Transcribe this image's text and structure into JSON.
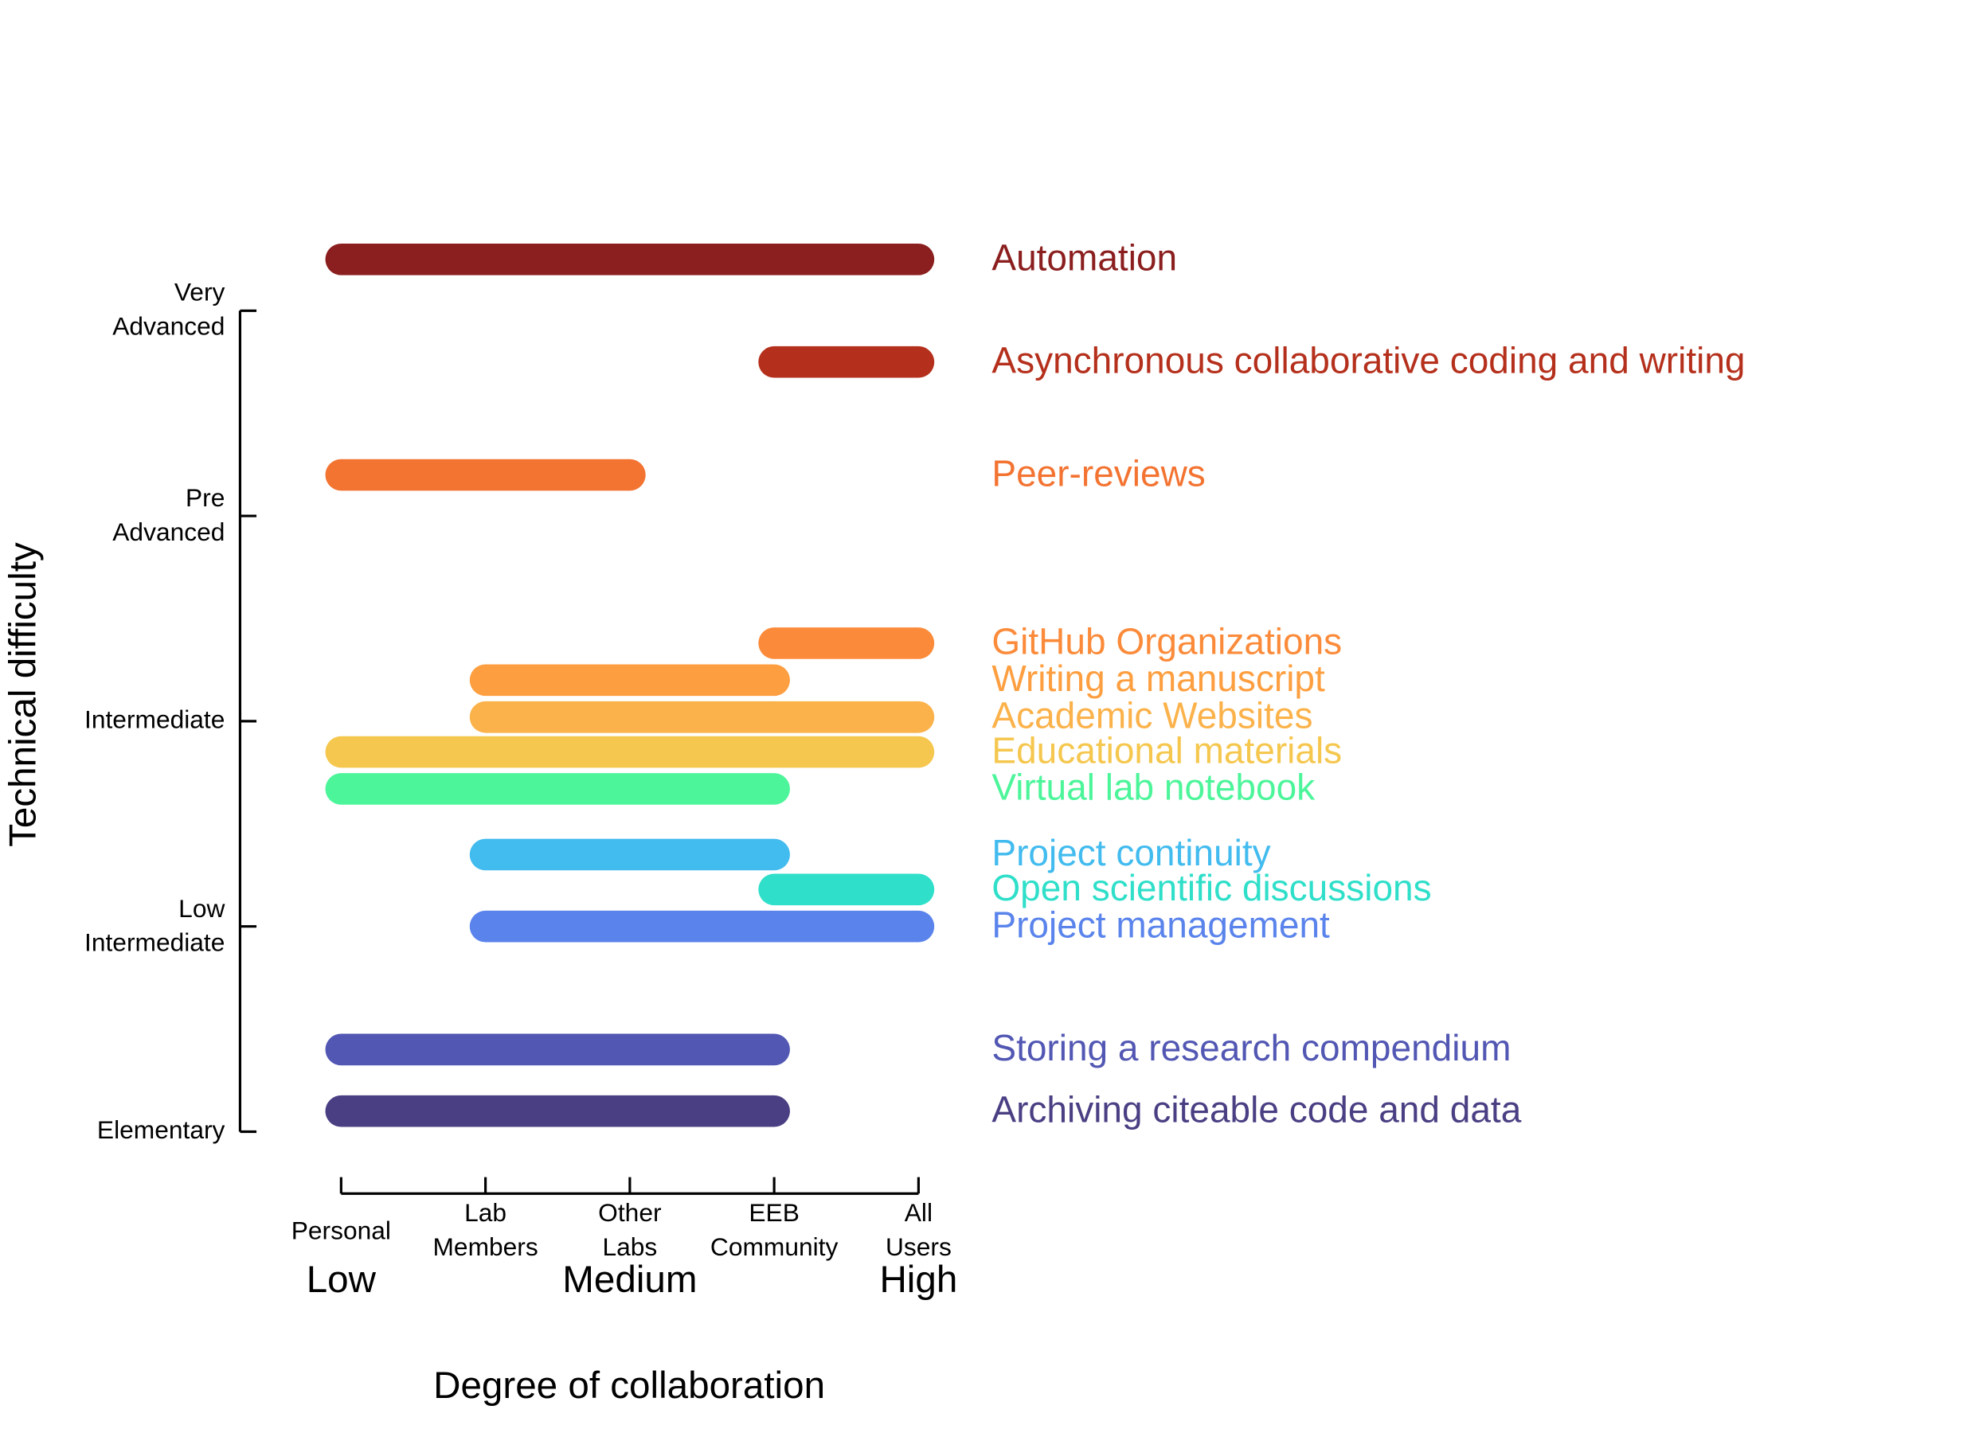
{
  "chart_data": {
    "type": "range_bar",
    "xlabel": "Degree of collaboration",
    "ylabel": "Technical difficulty",
    "xlim": [
      1,
      5
    ],
    "xticks": [
      {
        "value": 1,
        "label": "Personal"
      },
      {
        "value": 2,
        "label": "Lab Members"
      },
      {
        "value": 3,
        "label": "Other Labs"
      },
      {
        "value": 4,
        "label": "EEB Community"
      },
      {
        "value": 5,
        "label": "All Users"
      }
    ],
    "xlevels": [
      {
        "value": 1,
        "label": "Low"
      },
      {
        "value": 3,
        "label": "Medium"
      },
      {
        "value": 5,
        "label": "High"
      }
    ],
    "ylim": [
      1,
      5
    ],
    "yticks": [
      {
        "value": 1,
        "label": "Elementary"
      },
      {
        "value": 2,
        "label": "Low Intermediate"
      },
      {
        "value": 3,
        "label": "Intermediate"
      },
      {
        "value": 4,
        "label": "Pre Advanced"
      },
      {
        "value": 5,
        "label": "Very Advanced"
      }
    ],
    "grid": false,
    "series": [
      {
        "name": "Automation",
        "color": "#8b1e1e",
        "y": 5.25,
        "x": [
          1,
          5
        ]
      },
      {
        "name": "Asynchronous collaborative coding and writing",
        "color": "#b5301c",
        "y": 4.75,
        "x": [
          4,
          5
        ]
      },
      {
        "name": "Peer-reviews",
        "color": "#f37331",
        "y": 4.2,
        "x": [
          1,
          3
        ]
      },
      {
        "name": "GitHub Organizations",
        "color": "#fb8b3a",
        "y": 3.38,
        "x": [
          4,
          5
        ]
      },
      {
        "name": "Writing a manuscript",
        "color": "#fd9f40",
        "y": 3.2,
        "x": [
          2,
          4
        ]
      },
      {
        "name": "Academic Websites",
        "color": "#fbb24a",
        "y": 3.02,
        "x": [
          2,
          5
        ]
      },
      {
        "name": "Educational materials",
        "color": "#f5c74e",
        "y": 2.85,
        "x": [
          1,
          5
        ]
      },
      {
        "name": "Virtual lab notebook",
        "color": "#4cf59a",
        "y": 2.67,
        "x": [
          1,
          4
        ]
      },
      {
        "name": "Project continuity",
        "color": "#42bbef",
        "y": 2.35,
        "x": [
          2,
          4
        ]
      },
      {
        "name": "Open scientific discussions",
        "color": "#2fdfc9",
        "y": 2.18,
        "x": [
          4,
          5
        ]
      },
      {
        "name": "Project management",
        "color": "#5a84ec",
        "y": 2.0,
        "x": [
          2,
          5
        ]
      },
      {
        "name": "Storing a research compendium",
        "color": "#5257b3",
        "y": 1.4,
        "x": [
          1,
          4
        ]
      },
      {
        "name": "Archiving citeable code and data",
        "color": "#4a3f83",
        "y": 1.1,
        "x": [
          1,
          4
        ]
      }
    ]
  }
}
